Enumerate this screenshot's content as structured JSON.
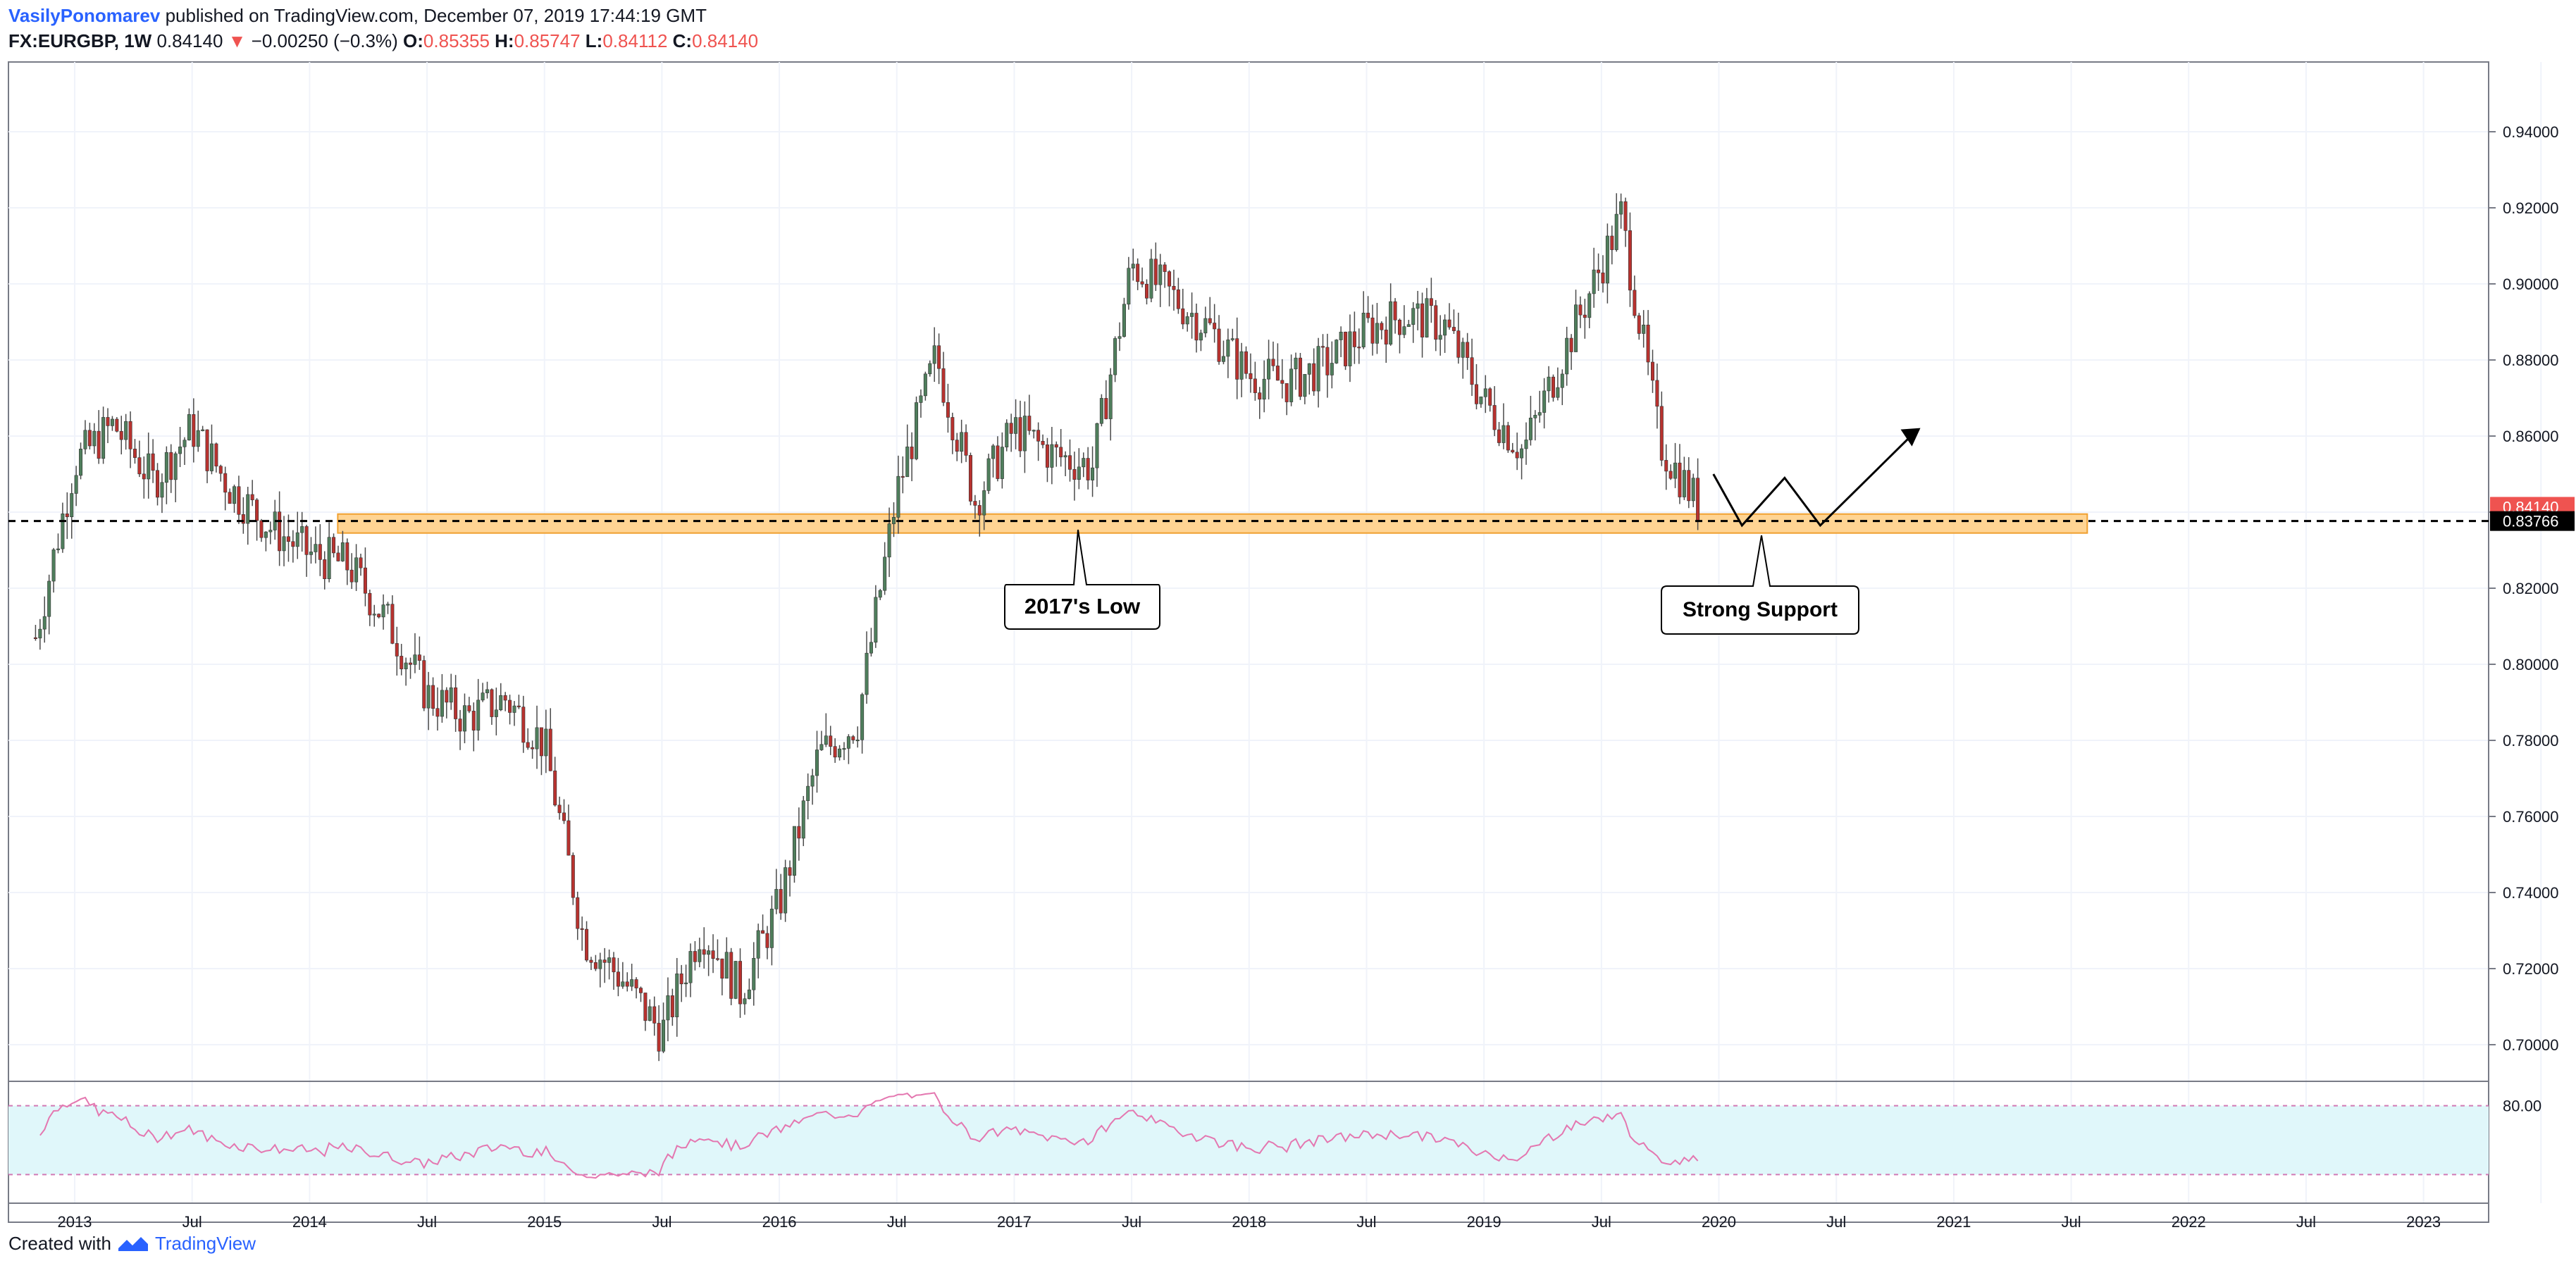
{
  "header": {
    "author": "VasilyPonomarev",
    "published_text": "published on TradingView.com, December 07, 2019 17:44:19 GMT",
    "symbol": "FX:EURGBP, 1W",
    "last": "0.84140",
    "change_arrow": "▼",
    "change": "−0.00250 (−0.3%)",
    "open_label": "O:",
    "open": "0.85355",
    "high_label": "H:",
    "high": "0.85747",
    "low_label": "L:",
    "low": "0.84112",
    "close_label": "C:",
    "close": "0.84140"
  },
  "colors": {
    "up": "#4f7e5c",
    "down": "#b8322f",
    "support_fill": "#ffcc80",
    "support_border": "#f0a030",
    "rsi_line": "#e477b0",
    "rsi_band": "#e0f7fa",
    "price_badge": "#ef5350",
    "line_badge": "#000000"
  },
  "price_axis": {
    "ticks": [
      "0.94000",
      "0.92000",
      "0.90000",
      "0.88000",
      "0.86000",
      "0.84000",
      "0.82000",
      "0.80000",
      "0.78000",
      "0.76000",
      "0.74000",
      "0.72000",
      "0.70000"
    ],
    "current_price_badge": "0.84140",
    "support_line_badge": "0.83766"
  },
  "rsi": {
    "upper_label": "80.00"
  },
  "time_axis": {
    "labels": [
      "2013",
      "Jul",
      "2014",
      "Jul",
      "2015",
      "Jul",
      "2016",
      "Jul",
      "2017",
      "Jul",
      "2018",
      "Jul",
      "2019",
      "Jul",
      "2020",
      "Jul",
      "2021",
      "Jul",
      "2022",
      "Jul",
      "2023"
    ]
  },
  "annotations": {
    "low_callout": "2017's Low",
    "support_callout": "Strong Support"
  },
  "chart_data": {
    "type": "candlestick",
    "symbol": "FX:EURGBP",
    "interval": "1W",
    "ylim": [
      0.69,
      0.95
    ],
    "x": [
      "2012-11",
      "2013-01",
      "2013-03",
      "2013-05",
      "2013-07",
      "2013-09",
      "2013-11",
      "2014-01",
      "2014-03",
      "2014-05",
      "2014-07",
      "2014-09",
      "2014-11",
      "2015-01",
      "2015-03",
      "2015-05",
      "2015-07",
      "2015-09",
      "2015-11",
      "2016-01",
      "2016-03",
      "2016-05",
      "2016-07",
      "2016-09",
      "2016-11",
      "2017-01",
      "2017-03",
      "2017-05",
      "2017-07",
      "2017-09",
      "2017-11",
      "2018-01",
      "2018-03",
      "2018-05",
      "2018-07",
      "2018-09",
      "2018-11",
      "2019-01",
      "2019-03",
      "2019-05",
      "2019-07",
      "2019-08",
      "2019-10",
      "2019-12"
    ],
    "close": [
      0.807,
      0.853,
      0.863,
      0.848,
      0.862,
      0.846,
      0.836,
      0.829,
      0.826,
      0.811,
      0.792,
      0.786,
      0.791,
      0.779,
      0.728,
      0.717,
      0.703,
      0.731,
      0.714,
      0.737,
      0.776,
      0.785,
      0.845,
      0.881,
      0.843,
      0.862,
      0.855,
      0.852,
      0.905,
      0.897,
      0.888,
      0.876,
      0.874,
      0.879,
      0.888,
      0.892,
      0.889,
      0.869,
      0.856,
      0.881,
      0.905,
      0.918,
      0.858,
      0.8414
    ],
    "support_zone": [
      0.8345,
      0.8395
    ],
    "support_level": 0.83766,
    "rsi_band": [
      20,
      80
    ]
  }
}
